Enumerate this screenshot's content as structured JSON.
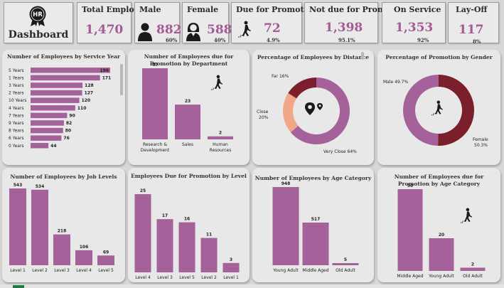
{
  "header": {
    "badge_text": "HR",
    "title": "Dashboard"
  },
  "kpis": {
    "total": {
      "title": "Total Employee",
      "value": "1,470"
    },
    "male": {
      "title": "Male",
      "value": "882",
      "pct": "60%"
    },
    "female": {
      "title": "Female",
      "value": "588",
      "pct": "40%"
    },
    "due": {
      "title": "Due for Promotion",
      "value": "72",
      "pct": "4.9%"
    },
    "not_due": {
      "title": "Not due for Promotion",
      "value": "1,398",
      "pct": "95.1%"
    },
    "on_service": {
      "title": "On Service",
      "value": "1,353",
      "pct": "92%"
    },
    "layoff": {
      "title": "Lay-Off",
      "value": "117",
      "pct": "8%"
    }
  },
  "icons": [
    "hr-badge-icon",
    "male-person-icon",
    "female-person-icon",
    "promotion-stairs-icon",
    "location-pin-icon"
  ],
  "colors": {
    "bar": "#a4619a",
    "donut_main": "#a4619a",
    "donut_dark": "#7a1f2b",
    "donut_peach": "#f0a889",
    "kpi_value": "#a35a95"
  },
  "chart_data": [
    {
      "type": "bar",
      "orientation": "horizontal",
      "title": "Number of Employees by Service Year",
      "categories": [
        "5 Years",
        "1 Years",
        "3 Years",
        "2 Years",
        "10 Years",
        "4 Years",
        "7 Years",
        "9 Years",
        "8 Years",
        "6 Years",
        "0 Years"
      ],
      "values": [
        196,
        171,
        128,
        127,
        120,
        110,
        90,
        82,
        80,
        76,
        44
      ]
    },
    {
      "type": "bar",
      "title": "Number of Employees due for Promotion by Department",
      "categories": [
        "Research & Development",
        "Sales",
        "Human Resources"
      ],
      "values": [
        47,
        23,
        2
      ]
    },
    {
      "type": "pie",
      "title": "Percentage of Employees by Distance",
      "labels": [
        "Very Close",
        "Close",
        "Far"
      ],
      "values": [
        64,
        20,
        16
      ],
      "value_labels": [
        "Very Close 64%",
        "Close 20%",
        "Far 16%"
      ]
    },
    {
      "type": "pie",
      "title": "Percentage of Promotion by Gender",
      "labels": [
        "Female",
        "Male"
      ],
      "values": [
        50.3,
        49.7
      ],
      "value_labels": [
        "Female 50.3%",
        "Male 49.7%"
      ]
    },
    {
      "type": "bar",
      "title": "Number of Employees by Job Levels",
      "categories": [
        "Level 1",
        "Level 2",
        "Level 3",
        "Level 4",
        "Level 5"
      ],
      "values": [
        543,
        534,
        218,
        106,
        69
      ]
    },
    {
      "type": "bar",
      "title": "Employees Due for Promotion by Level",
      "categories": [
        "Level 4",
        "Level 3",
        "Level 5",
        "Level 2",
        "Level 1"
      ],
      "values": [
        25,
        17,
        16,
        11,
        3
      ]
    },
    {
      "type": "bar",
      "title": "Number of Employees by Age Category",
      "categories": [
        "Young Adult",
        "Middle Aged",
        "Old Adult"
      ],
      "values": [
        948,
        517,
        5
      ]
    },
    {
      "type": "bar",
      "title": "Number of Employees due for Promotion by Age Category",
      "categories": [
        "Middle Aged",
        "Young Adult",
        "Old Adult"
      ],
      "values": [
        50,
        20,
        2
      ]
    }
  ]
}
